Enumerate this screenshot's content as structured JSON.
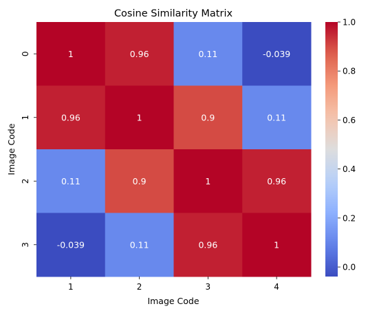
{
  "chart_data": {
    "type": "heatmap",
    "title": "Cosine Similarity Matrix",
    "xlabel": "Image Code",
    "ylabel": "Image Code",
    "x_categories": [
      "1",
      "2",
      "3",
      "4"
    ],
    "y_categories": [
      "0",
      "1",
      "2",
      "3"
    ],
    "values": [
      [
        1,
        0.96,
        0.11,
        -0.039
      ],
      [
        0.96,
        1,
        0.9,
        0.11
      ],
      [
        0.11,
        0.9,
        1,
        0.96
      ],
      [
        -0.039,
        0.11,
        0.96,
        1
      ]
    ],
    "annotations": [
      [
        "1",
        "0.96",
        "0.11",
        "-0.039"
      ],
      [
        "0.96",
        "1",
        "0.9",
        "0.11"
      ],
      [
        "0.11",
        "0.9",
        "1",
        "0.96"
      ],
      [
        "-0.039",
        "0.11",
        "0.96",
        "1"
      ]
    ],
    "colormap": "coolwarm",
    "vmin": -0.039,
    "vmax": 1.0,
    "colorbar_ticks": [
      0.0,
      0.2,
      0.4,
      0.6,
      0.8,
      1.0
    ],
    "colorbar_tick_labels": [
      "0.0",
      "0.2",
      "0.4",
      "0.6",
      "0.8",
      "1.0"
    ],
    "grid": false
  }
}
